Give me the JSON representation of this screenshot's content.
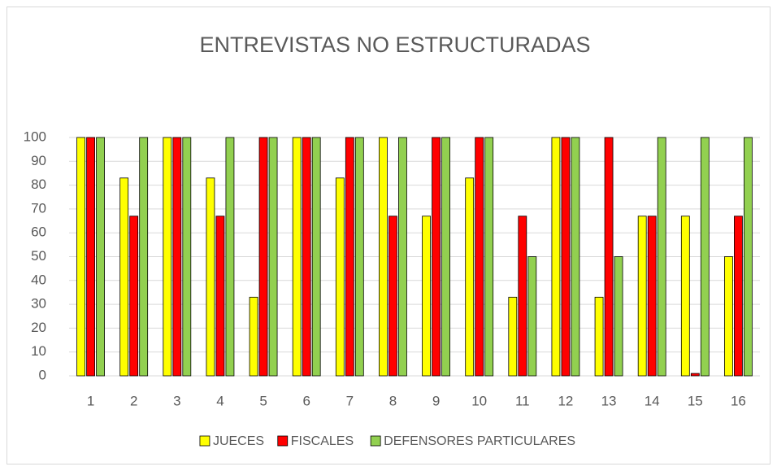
{
  "chart_data": {
    "type": "bar",
    "title": "ENTREVISTAS NO ESTRUCTURADAS",
    "categories": [
      "1",
      "2",
      "3",
      "4",
      "5",
      "6",
      "7",
      "8",
      "9",
      "10",
      "11",
      "12",
      "13",
      "14",
      "15",
      "16"
    ],
    "series": [
      {
        "name": "JUECES",
        "color": "#ffff00",
        "values": [
          100,
          83,
          100,
          83,
          33,
          100,
          83,
          100,
          67,
          83,
          33,
          100,
          33,
          67,
          67,
          50
        ]
      },
      {
        "name": "FISCALES",
        "color": "#ff0000",
        "values": [
          100,
          67,
          100,
          67,
          100,
          100,
          100,
          67,
          100,
          100,
          67,
          100,
          100,
          67,
          1,
          67
        ]
      },
      {
        "name": "DEFENSORES PARTICULARES",
        "color": "#92d050",
        "values": [
          100,
          100,
          100,
          100,
          100,
          100,
          100,
          100,
          100,
          100,
          50,
          100,
          50,
          100,
          100,
          100
        ]
      }
    ],
    "ylim": [
      0,
      100
    ],
    "yticks": [
      0,
      10,
      20,
      30,
      40,
      50,
      60,
      70,
      80,
      90,
      100
    ],
    "grid": true,
    "legend": "bottom"
  }
}
